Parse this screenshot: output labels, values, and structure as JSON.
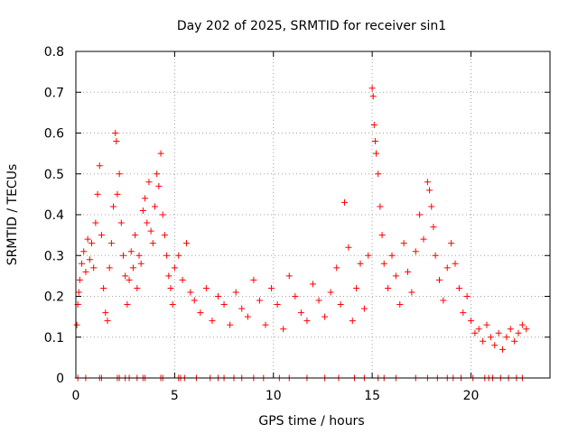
{
  "chart_data": {
    "type": "scatter",
    "title": "Day 202 of 2025, SRMTID for receiver sin1",
    "xlabel": "GPS time / hours",
    "ylabel": "SRMTID / TECUs",
    "xlim": [
      0,
      24
    ],
    "ylim": [
      0,
      0.8
    ],
    "x_ticks": [
      0,
      5,
      10,
      15,
      20
    ],
    "y_ticks": [
      0,
      0.1,
      0.2,
      0.3,
      0.4,
      0.5,
      0.6,
      0.7,
      0.8
    ],
    "x_tick_labels": [
      "0",
      "5",
      "10",
      "15",
      "20"
    ],
    "y_tick_labels": [
      "0",
      "0.1",
      "0.2",
      "0.3",
      "0.4",
      "0.5",
      "0.6",
      "0.7",
      "0.8"
    ],
    "grid": true,
    "marker": "+",
    "marker_color": "#ff0000",
    "series": [
      {
        "name": "SRMTID",
        "x": [
          0.05,
          0.1,
          0.15,
          0.2,
          0.3,
          0.4,
          0.5,
          0.6,
          0.7,
          0.8,
          0.9,
          1.0,
          1.1,
          1.2,
          1.3,
          1.4,
          1.5,
          1.6,
          1.7,
          1.8,
          1.9,
          2.0,
          2.05,
          2.1,
          2.2,
          2.3,
          2.4,
          2.5,
          2.6,
          2.7,
          2.8,
          2.9,
          3.0,
          3.1,
          3.2,
          3.3,
          3.4,
          3.5,
          3.6,
          3.7,
          3.8,
          3.9,
          4.0,
          4.1,
          4.2,
          4.3,
          4.4,
          4.5,
          4.6,
          4.7,
          4.8,
          4.9,
          5.0,
          5.2,
          5.4,
          5.6,
          5.8,
          6.0,
          6.3,
          6.6,
          6.9,
          7.2,
          7.5,
          7.8,
          8.1,
          8.4,
          8.7,
          9.0,
          9.3,
          9.6,
          9.9,
          10.2,
          10.5,
          10.8,
          11.1,
          11.4,
          11.7,
          12.0,
          12.3,
          12.6,
          12.9,
          13.2,
          13.4,
          13.6,
          13.8,
          14.0,
          14.2,
          14.4,
          14.6,
          14.8,
          15.0,
          15.05,
          15.1,
          15.15,
          15.2,
          15.3,
          15.4,
          15.5,
          15.6,
          15.8,
          16.0,
          16.2,
          16.4,
          16.6,
          16.8,
          17.0,
          17.2,
          17.4,
          17.6,
          17.8,
          17.9,
          18.0,
          18.1,
          18.2,
          18.4,
          18.6,
          18.8,
          19.0,
          19.2,
          19.4,
          19.6,
          19.8,
          20.0,
          20.2,
          20.4,
          20.6,
          20.8,
          21.0,
          21.2,
          21.4,
          21.6,
          21.8,
          22.0,
          22.2,
          22.4,
          22.6,
          22.8
        ],
        "y": [
          0.13,
          0.18,
          0.21,
          0.24,
          0.28,
          0.31,
          0.26,
          0.34,
          0.29,
          0.33,
          0.27,
          0.38,
          0.45,
          0.52,
          0.35,
          0.22,
          0.16,
          0.14,
          0.27,
          0.33,
          0.42,
          0.6,
          0.58,
          0.45,
          0.5,
          0.38,
          0.3,
          0.25,
          0.18,
          0.24,
          0.31,
          0.27,
          0.35,
          0.22,
          0.3,
          0.28,
          0.41,
          0.44,
          0.38,
          0.48,
          0.36,
          0.33,
          0.42,
          0.5,
          0.47,
          0.55,
          0.4,
          0.35,
          0.3,
          0.25,
          0.22,
          0.18,
          0.27,
          0.3,
          0.24,
          0.33,
          0.21,
          0.19,
          0.16,
          0.22,
          0.14,
          0.2,
          0.18,
          0.13,
          0.21,
          0.17,
          0.15,
          0.24,
          0.19,
          0.13,
          0.22,
          0.18,
          0.12,
          0.25,
          0.2,
          0.16,
          0.14,
          0.23,
          0.19,
          0.15,
          0.21,
          0.27,
          0.18,
          0.43,
          0.32,
          0.14,
          0.22,
          0.28,
          0.17,
          0.3,
          0.71,
          0.69,
          0.62,
          0.58,
          0.55,
          0.5,
          0.42,
          0.35,
          0.28,
          0.22,
          0.3,
          0.25,
          0.18,
          0.33,
          0.26,
          0.21,
          0.31,
          0.4,
          0.34,
          0.48,
          0.46,
          0.42,
          0.37,
          0.3,
          0.24,
          0.19,
          0.27,
          0.33,
          0.28,
          0.22,
          0.16,
          0.2,
          0.14,
          0.11,
          0.12,
          0.09,
          0.13,
          0.1,
          0.08,
          0.11,
          0.07,
          0.1,
          0.12,
          0.09,
          0.11,
          0.13,
          0.12
        ],
        "baseline_x": [
          0.1,
          0.5,
          1.2,
          1.3,
          2.1,
          2.2,
          2.5,
          2.7,
          3.1,
          3.4,
          3.5,
          4.3,
          4.4,
          5.2,
          5.3,
          5.5,
          6.1,
          6.8,
          7.2,
          7.5,
          8.0,
          8.4,
          9.0,
          9.5,
          10.3,
          10.8,
          11.7,
          12.6,
          13.3,
          14.1,
          14.6,
          15.3,
          15.6,
          16.2,
          17.2,
          17.8,
          18.3,
          18.8,
          19.1,
          19.5,
          20.1,
          20.7,
          20.9,
          21.1,
          21.5,
          21.9,
          22.3,
          22.6
        ]
      }
    ]
  }
}
